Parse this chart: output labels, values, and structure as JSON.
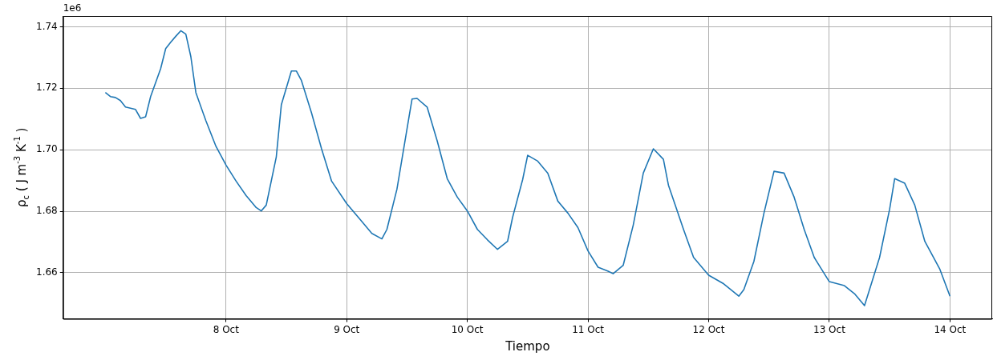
{
  "chart_data": {
    "type": "line",
    "xlabel": "Tiempo",
    "ylabel": "ρ$_{c}$ ( J m$^{-3}$ K$^{-1}$ )",
    "annotations": [
      "1e6"
    ],
    "xlim": [
      "--10-06T15:36",
      "--10-14T08:24"
    ],
    "ylim": [
      1.645,
      1.7435
    ],
    "xticks": [
      {
        "value": "--10-08",
        "label": "8 Oct"
      },
      {
        "value": "--10-09",
        "label": "9 Oct"
      },
      {
        "value": "--10-10",
        "label": "10 Oct"
      },
      {
        "value": "--10-11",
        "label": "11 Oct"
      },
      {
        "value": "--10-12",
        "label": "12 Oct"
      },
      {
        "value": "--10-13",
        "label": "13 Oct"
      },
      {
        "value": "--10-14",
        "label": "14 Oct"
      }
    ],
    "yticks": [
      {
        "value": 1.66,
        "label": "1.66"
      },
      {
        "value": 1.68,
        "label": "1.68"
      },
      {
        "value": 1.7,
        "label": "1.70"
      },
      {
        "value": 1.72,
        "label": "1.72"
      },
      {
        "value": 1.74,
        "label": "1.74"
      }
    ],
    "grid": true,
    "marker": "none",
    "line_style": "solid",
    "x": [
      "--10-07T00:00",
      "--10-07T01:00",
      "--10-07T02:00",
      "--10-07T03:00",
      "--10-07T04:00",
      "--10-07T06:00",
      "--10-07T07:00",
      "--10-07T08:00",
      "--10-07T09:00",
      "--10-07T11:00",
      "--10-07T12:00",
      "--10-07T13:00",
      "--10-07T14:00",
      "--10-07T15:00",
      "--10-07T16:00",
      "--10-07T17:00",
      "--10-07T18:00",
      "--10-07T20:00",
      "--10-07T22:00",
      "--10-08T00:00",
      "--10-08T02:00",
      "--10-08T04:00",
      "--10-08T06:00",
      "--10-08T07:00",
      "--10-08T08:00",
      "--10-08T10:00",
      "--10-08T11:00",
      "--10-08T13:00",
      "--10-08T14:00",
      "--10-08T15:00",
      "--10-08T17:00",
      "--10-08T19:00",
      "--10-08T21:00",
      "--10-09T00:00",
      "--10-09T03:00",
      "--10-09T05:00",
      "--10-09T07:00",
      "--10-09T08:00",
      "--10-09T10:00",
      "--10-09T12:00",
      "--10-09T13:00",
      "--10-09T14:00",
      "--10-09T16:00",
      "--10-09T18:00",
      "--10-09T20:00",
      "--10-09T22:00",
      "--10-10T00:00",
      "--10-10T02:00",
      "--10-10T04:00",
      "--10-10T06:00",
      "--10-10T08:00",
      "--10-10T09:00",
      "--10-10T11:00",
      "--10-10T12:00",
      "--10-10T14:00",
      "--10-10T16:00",
      "--10-10T18:00",
      "--10-10T20:00",
      "--10-10T22:00",
      "--10-11T00:00",
      "--10-11T02:00",
      "--10-11T04:00",
      "--10-11T05:00",
      "--10-11T07:00",
      "--10-11T09:00",
      "--10-11T11:00",
      "--10-11T13:00",
      "--10-11T15:00",
      "--10-11T16:00",
      "--10-11T19:00",
      "--10-11T21:00",
      "--10-12T00:00",
      "--10-12T03:00",
      "--10-12T06:00",
      "--10-12T07:00",
      "--10-12T09:00",
      "--10-12T11:00",
      "--10-12T13:00",
      "--10-12T15:00",
      "--10-12T17:00",
      "--10-12T19:00",
      "--10-12T21:00",
      "--10-13T00:00",
      "--10-13T03:00",
      "--10-13T05:00",
      "--10-13T07:00",
      "--10-13T08:00",
      "--10-13T10:00",
      "--10-13T12:00",
      "--10-13T13:00",
      "--10-13T15:00",
      "--10-13T17:00",
      "--10-13T19:00",
      "--10-13T22:00",
      "--10-14T00:00"
    ],
    "series": [
      {
        "color": "#1f77b4",
        "values": [
          1.7186,
          1.7173,
          1.717,
          1.716,
          1.7139,
          1.7131,
          1.7102,
          1.7107,
          1.7173,
          1.7264,
          1.7329,
          1.735,
          1.7369,
          1.7387,
          1.7376,
          1.7303,
          1.7186,
          1.7094,
          1.7011,
          1.695,
          1.6898,
          1.6851,
          1.6812,
          1.6801,
          1.682,
          1.6977,
          1.7146,
          1.7256,
          1.7256,
          1.7225,
          1.712,
          1.7003,
          1.6898,
          1.6825,
          1.6767,
          1.6728,
          1.671,
          1.6741,
          1.6872,
          1.7068,
          1.7165,
          1.7167,
          1.7139,
          1.7029,
          1.6906,
          1.6846,
          1.6801,
          1.6741,
          1.6707,
          1.6676,
          1.6702,
          1.678,
          1.6903,
          1.6982,
          1.6963,
          1.6924,
          1.6833,
          1.6794,
          1.6747,
          1.6671,
          1.6618,
          1.6605,
          1.6597,
          1.6624,
          1.6755,
          1.6924,
          1.7003,
          1.6969,
          1.6885,
          1.6741,
          1.665,
          1.6592,
          1.6564,
          1.6524,
          1.6545,
          1.6637,
          1.6794,
          1.693,
          1.6924,
          1.6846,
          1.6741,
          1.665,
          1.6571,
          1.6558,
          1.6532,
          1.6493,
          1.6545,
          1.665,
          1.6807,
          1.6906,
          1.6891,
          1.682,
          1.6702,
          1.6611,
          1.6524
        ]
      }
    ]
  }
}
